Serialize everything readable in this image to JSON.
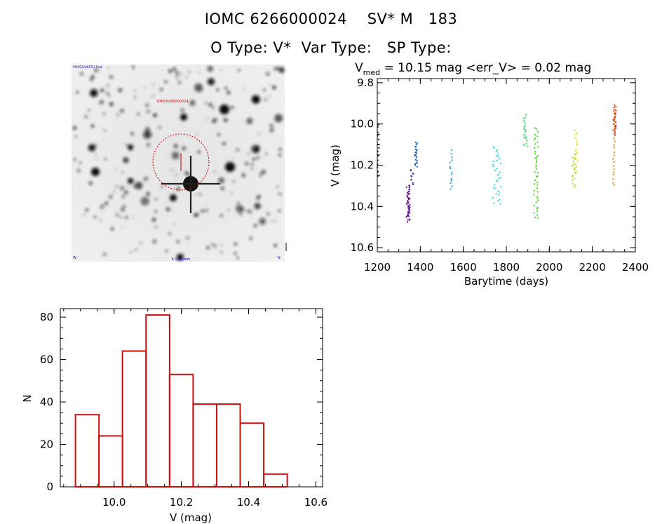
{
  "header": {
    "line1": "IOMC 6266000024    SV* M   183",
    "line2": "O Type: V*  Var Type:   SP Type:"
  },
  "finder": {
    "corner_tl": "POSS2/UKSTU Red",
    "marker_label": "IOMC6266000024",
    "label_bottom": "4.1 arcmin",
    "corner_bl": "W",
    "corner_br": "N"
  },
  "lightcurve": {
    "type": "scatter",
    "title_prefix": "V",
    "title_sub": "med",
    "title_rest": " = 10.15 mag <err_V> = 0.02 mag",
    "xlabel": "Barytime (days)",
    "ylabel": "V (mag)",
    "xlim": [
      1200,
      2400
    ],
    "ylim": [
      10.62,
      9.78
    ],
    "xticks": [
      1200,
      1400,
      1600,
      1800,
      2000,
      2200,
      2400
    ],
    "yticks": [
      "9.8",
      "10.0",
      "10.2",
      "10.4",
      "10.6"
    ],
    "series": [
      {
        "color": "#2a003a",
        "x_range": [
          1200,
          1208
        ],
        "y_range": [
          10.0,
          10.25
        ],
        "n": 14
      },
      {
        "color": "#5a1090",
        "x_range": [
          1335,
          1352
        ],
        "y_range": [
          10.3,
          10.47
        ],
        "n": 45
      },
      {
        "color": "#3030a8",
        "x_range": [
          1355,
          1372
        ],
        "y_range": [
          10.22,
          10.29
        ],
        "n": 10
      },
      {
        "color": "#2060c8",
        "x_range": [
          1374,
          1386
        ],
        "y_range": [
          10.09,
          10.21
        ],
        "n": 22
      },
      {
        "color": "#2c9ad8",
        "x_range": [
          1538,
          1548
        ],
        "y_range": [
          10.13,
          10.32
        ],
        "n": 14
      },
      {
        "color": "#30d8e0",
        "x_range": [
          1738,
          1775
        ],
        "y_range": [
          10.11,
          10.39
        ],
        "n": 35
      },
      {
        "color": "#38d868",
        "x_range": [
          1880,
          1898
        ],
        "y_range": [
          9.96,
          10.11
        ],
        "n": 18
      },
      {
        "color": "#48d820",
        "x_range": [
          1928,
          1948
        ],
        "y_range": [
          10.02,
          10.46
        ],
        "n": 45
      },
      {
        "color": "#a0e020",
        "x_range": [
          2105,
          2120
        ],
        "y_range": [
          10.15,
          10.31
        ],
        "n": 16
      },
      {
        "color": "#e8e020",
        "x_range": [
          2118,
          2132
        ],
        "y_range": [
          10.03,
          10.24
        ],
        "n": 20
      },
      {
        "color": "#e88810",
        "x_range": [
          2295,
          2305
        ],
        "y_range": [
          9.95,
          10.3
        ],
        "n": 22
      },
      {
        "color": "#e03810",
        "x_range": [
          2298,
          2310
        ],
        "y_range": [
          9.91,
          10.05
        ],
        "n": 25
      }
    ]
  },
  "chart_data": {
    "type": "bar",
    "xlabel": "V (mag)",
    "ylabel": "N",
    "xlim": [
      9.84,
      10.62
    ],
    "ylim": [
      0,
      84
    ],
    "xticks": [
      "10.0",
      "10.2",
      "10.4",
      "10.6"
    ],
    "yticks": [
      0,
      20,
      40,
      60,
      80
    ],
    "bin_edges": [
      9.885,
      9.955,
      10.025,
      10.095,
      10.165,
      10.235,
      10.305,
      10.375,
      10.445,
      10.515
    ],
    "values": [
      34,
      24,
      64,
      81,
      53,
      39,
      39,
      30,
      6
    ],
    "bar_color": "#cc1010"
  }
}
